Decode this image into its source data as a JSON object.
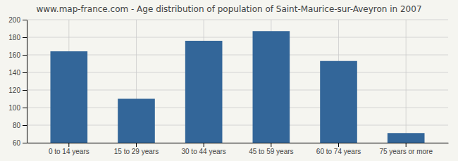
{
  "chart_data": {
    "type": "bar",
    "title": "www.map-france.com - Age distribution of population of Saint-Maurice-sur-Aveyron in 2007",
    "categories": [
      "0 to 14 years",
      "15 to 29 years",
      "30 to 44 years",
      "45 to 59 years",
      "60 to 74 years",
      "75 years or more"
    ],
    "values": [
      164,
      110,
      176,
      187,
      153,
      71
    ],
    "color": "#336699",
    "ylim": [
      60,
      200
    ],
    "yticks": [
      60,
      80,
      100,
      120,
      140,
      160,
      180,
      200
    ],
    "grid": true
  }
}
